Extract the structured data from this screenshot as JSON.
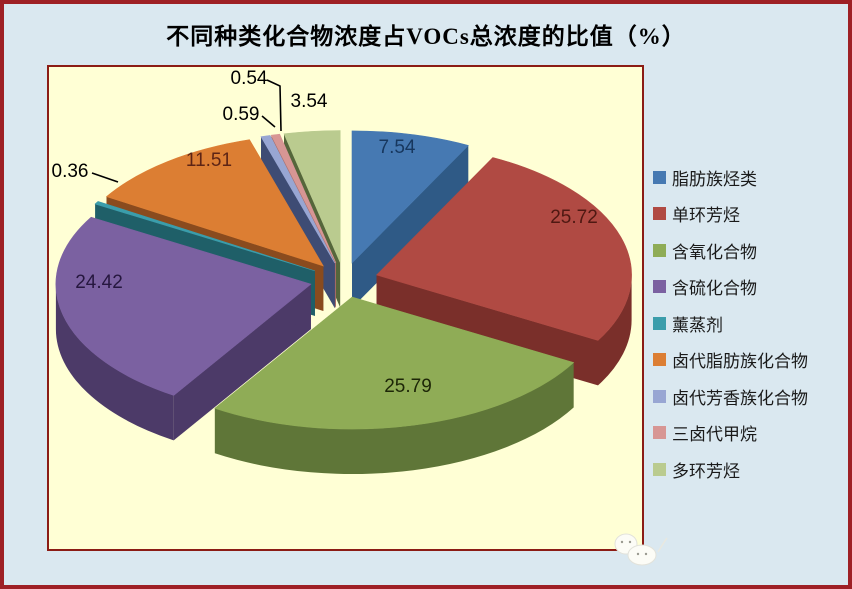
{
  "chart_data": {
    "type": "pie",
    "style": "3d-exploded",
    "title": "不同种类化合物浓度占VOCs总浓度的比值（%）",
    "unit": "%",
    "start_angle_deg": 0,
    "direction": "clockwise",
    "legend_position": "right",
    "grid": false,
    "slices": [
      {
        "label": "脂肪族烃类",
        "value": 7.54,
        "color": "#4679B2",
        "side_color": "#2F5A86",
        "label_color": "#17375E"
      },
      {
        "label": "单环芳烃",
        "value": 25.72,
        "color": "#B04A43",
        "side_color": "#7A2F2A",
        "label_color": "#4F1812"
      },
      {
        "label": "含氧化合物",
        "value": 25.79,
        "color": "#8FAC56",
        "side_color": "#5F7638",
        "label_color": "#1D2607"
      },
      {
        "label": "含硫化合物",
        "value": 24.42,
        "color": "#7B61A1",
        "side_color": "#4C3A68",
        "label_color": "#26173F"
      },
      {
        "label": "薰蒸剂",
        "value": 0.36,
        "color": "#3B9DAB",
        "side_color": "#1F5F68",
        "label_color": "#000000"
      },
      {
        "label": "卤代脂肪族化合物",
        "value": 11.51,
        "color": "#DC7E33",
        "side_color": "#8A4B1E",
        "label_color": "#5D2415"
      },
      {
        "label": "卤代芳香族化合物",
        "value": 0.59,
        "color": "#98A6D3",
        "side_color": "#3E4C74",
        "label_color": "#000000"
      },
      {
        "label": "三卤代甲烷",
        "value": 0.54,
        "color": "#D79694",
        "side_color": "#A66A67",
        "label_color": "#000000"
      },
      {
        "label": "多环芳烃",
        "value": 3.54,
        "color": "#BACB8F",
        "side_color": "#55663B",
        "label_color": "#000000"
      }
    ]
  },
  "colors": {
    "page_bg": "#DAE8F0",
    "page_border": "#9E2025",
    "plot_bg": "#FFFFD5",
    "plot_border": "#8B1C15",
    "title_color": "#000000",
    "legend_text": "#1A1A1A",
    "leader_line": "#000000"
  }
}
